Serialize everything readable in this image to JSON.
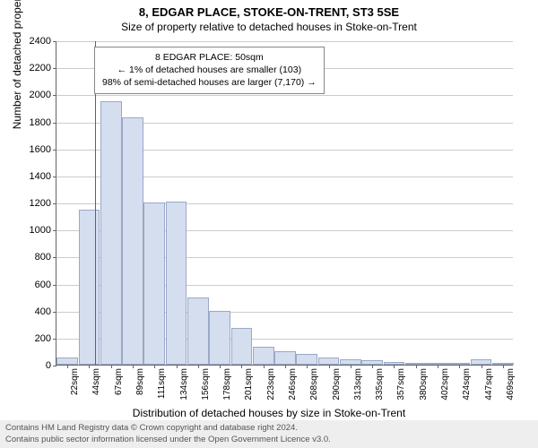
{
  "chart": {
    "type": "histogram",
    "title_main": "8, EDGAR PLACE, STOKE-ON-TRENT, ST3 5SE",
    "title_sub": "Size of property relative to detached houses in Stoke-on-Trent",
    "y_axis_label": "Number of detached properties",
    "x_axis_label": "Distribution of detached houses by size in Stoke-on-Trent",
    "y_ticks": [
      0,
      200,
      400,
      600,
      800,
      1000,
      1200,
      1400,
      1600,
      1800,
      2000,
      2200,
      2400
    ],
    "ylim": [
      0,
      2400
    ],
    "x_categories": [
      "22sqm",
      "44sqm",
      "67sqm",
      "89sqm",
      "111sqm",
      "134sqm",
      "156sqm",
      "178sqm",
      "201sqm",
      "223sqm",
      "246sqm",
      "268sqm",
      "290sqm",
      "313sqm",
      "335sqm",
      "357sqm",
      "380sqm",
      "402sqm",
      "424sqm",
      "447sqm",
      "469sqm"
    ],
    "values": [
      50,
      1150,
      1950,
      1830,
      1200,
      1205,
      500,
      400,
      270,
      130,
      100,
      80,
      50,
      40,
      30,
      20,
      15,
      10,
      8,
      40,
      5
    ],
    "bar_fill": "#d4deef",
    "bar_border": "#9aa8c7",
    "grid_color": "#cccccc",
    "axis_color": "#666666",
    "background_color": "#ffffff",
    "marker_x_index": 1.25,
    "marker_color": "#cc3333",
    "annotation": {
      "line1": "8 EDGAR PLACE: 50sqm",
      "line2": "← 1% of detached houses are smaller (103)",
      "line3": "98% of semi-detached houses are larger (7,170) →"
    },
    "title_fontsize": 13,
    "subtitle_fontsize": 12,
    "axis_label_fontsize": 12,
    "tick_fontsize": 11,
    "x_tick_fontsize": 10,
    "annotation_fontsize": 10.5
  },
  "attribution": {
    "line1": "Contains HM Land Registry data © Crown copyright and database right 2024.",
    "line2": "Contains public sector information licensed under the Open Government Licence v3.0."
  }
}
